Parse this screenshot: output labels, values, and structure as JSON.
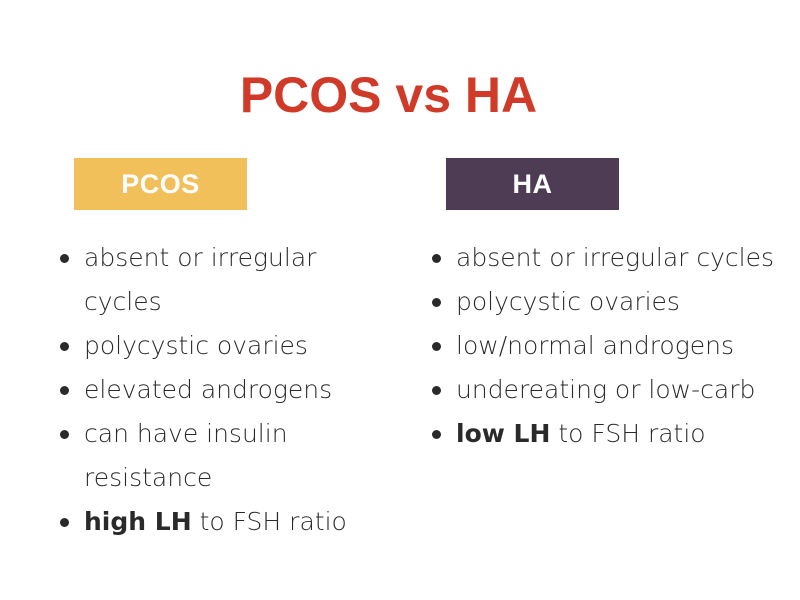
{
  "title": "PCOS vs HA",
  "columns": [
    {
      "header": "PCOS",
      "items": [
        {
          "text": "absent or irregular cycles"
        },
        {
          "text": "polycystic ovaries"
        },
        {
          "text": "elevated androgens"
        },
        {
          "text": "can have insulin resistance"
        },
        {
          "bold": "high LH",
          "text": " to FSH ratio"
        }
      ]
    },
    {
      "header": "HA",
      "items": [
        {
          "text": "absent or irregular cycles"
        },
        {
          "text": "polycystic ovaries"
        },
        {
          "text": "low/normal androgens"
        },
        {
          "text": "undereating or low-carb"
        },
        {
          "bold": "low LH",
          "text": " to FSH ratio"
        }
      ]
    }
  ],
  "colors": {
    "title": "#d03a29",
    "pcos_header": "#f2c05a",
    "ha_header": "#4d3c53",
    "text": "#2a2a2a"
  }
}
